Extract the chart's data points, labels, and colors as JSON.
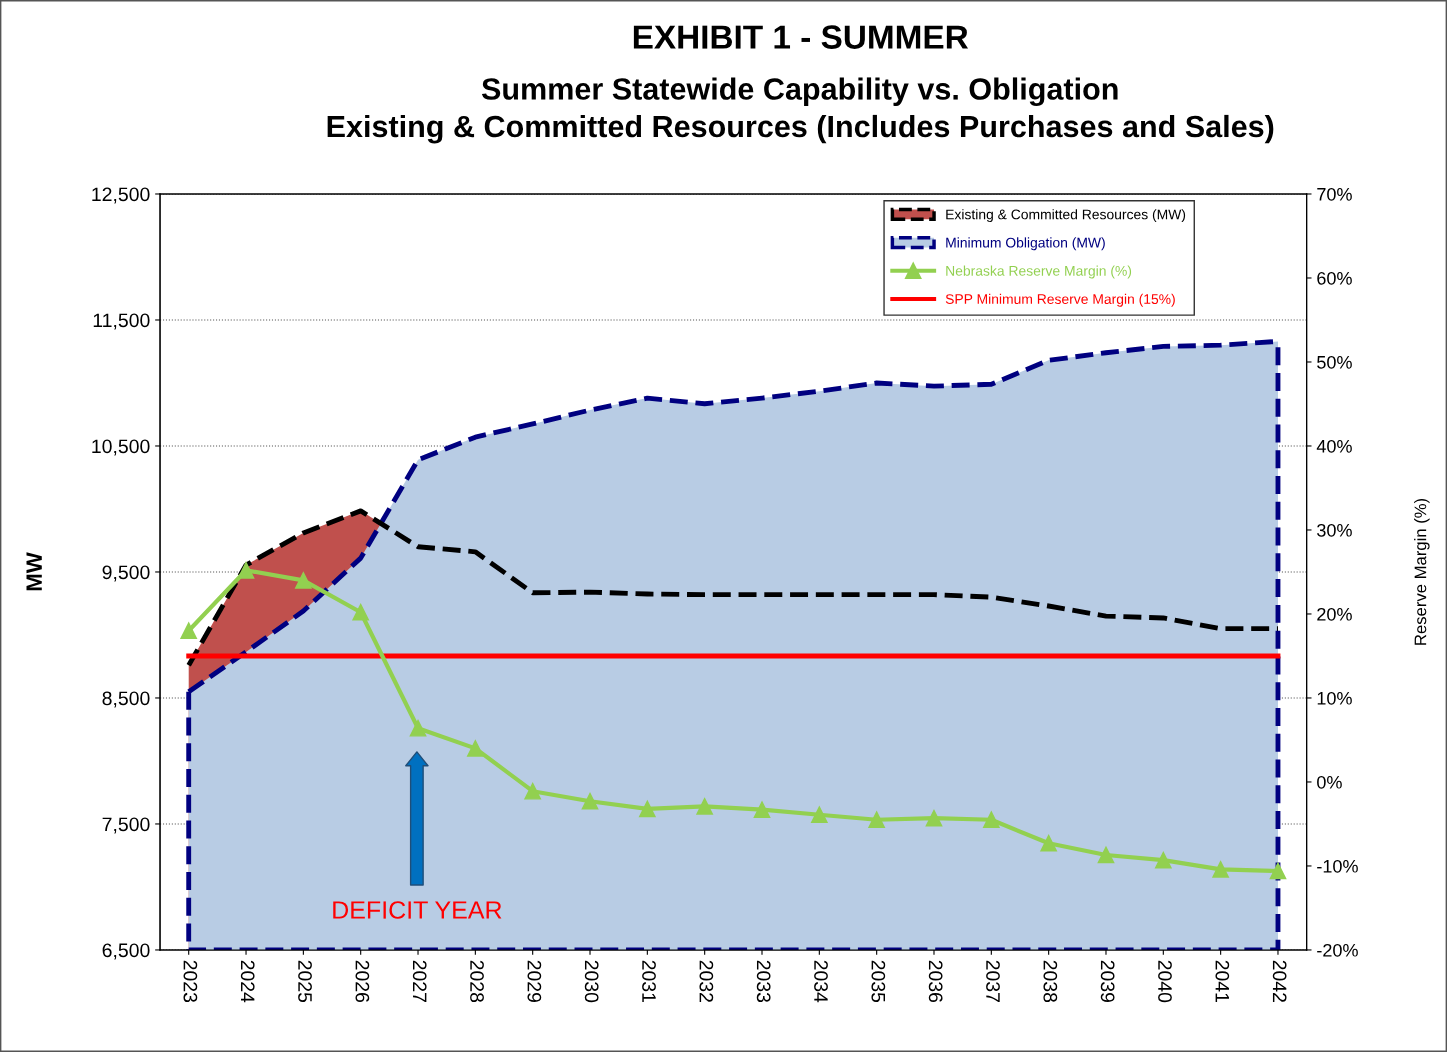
{
  "chart_data": {
    "type": "area",
    "title": "EXHIBIT 1 - SUMMER",
    "subtitle": "Summer Statewide Capability vs. Obligation\nExisting & Committed Resources (Includes Purchases and Sales)",
    "ylabel": "MW",
    "y2label": "Reserve Margin (%)",
    "categories": [
      "2023",
      "2024",
      "2025",
      "2026",
      "2027",
      "2028",
      "2029",
      "2030",
      "2031",
      "2032",
      "2033",
      "2034",
      "2035",
      "2036",
      "2037",
      "2038",
      "2039",
      "2040",
      "2041",
      "2042"
    ],
    "series": [
      {
        "name": "Existing & Committed Resources (MW)",
        "color": "#c0504d",
        "line_style": "dashed",
        "values": [
          8760,
          9555,
          9810,
          9985,
          9700,
          9660,
          9335,
          9340,
          9325,
          9320,
          9320,
          9320,
          9320,
          9320,
          9300,
          9230,
          9150,
          9135,
          9050,
          9050
        ]
      },
      {
        "name": "Minimum Obligation (MW)",
        "color": "#b8cce4",
        "line_style": "dashed",
        "values": [
          8550,
          8865,
          9190,
          9610,
          10390,
          10570,
          10675,
          10785,
          10880,
          10835,
          10880,
          10935,
          11000,
          10975,
          10990,
          11180,
          11240,
          11290,
          11300,
          11330
        ]
      },
      {
        "name": "Nebraska Reserve Margin (%)",
        "type": "line",
        "axis": "y2",
        "color": "#92d050",
        "marker": "triangle",
        "line_style": "solid",
        "values": [
          18.0,
          25.2,
          24.0,
          20.2,
          6.4,
          4.0,
          -1.1,
          -2.3,
          -3.2,
          -2.9,
          -3.3,
          -3.9,
          -4.5,
          -4.3,
          -4.5,
          -7.3,
          -8.7,
          -9.3,
          -10.4,
          -10.6
        ]
      }
    ],
    "ref_lines": [
      {
        "axis": "y2",
        "value": 15,
        "label": "SPP Minimum Reserve Margin (15%)",
        "color": "#ff0000",
        "line_style": "solid"
      }
    ],
    "annotations": [
      "DEFICIT YEAR"
    ],
    "ylim": [
      6500,
      12500
    ],
    "yticks": [
      {
        "value": 6500,
        "label": "6,500"
      },
      {
        "value": 7500,
        "label": "7,500"
      },
      {
        "value": 8500,
        "label": "8,500"
      },
      {
        "value": 9500,
        "label": "9,500"
      },
      {
        "value": 10500,
        "label": "10,500"
      },
      {
        "value": 11500,
        "label": "11,500"
      },
      {
        "value": 12500,
        "label": "12,500"
      }
    ],
    "y2lim": [
      -20,
      70
    ],
    "y2ticks": [
      {
        "value": -20,
        "label": "-20%"
      },
      {
        "value": -10,
        "label": "-10%"
      },
      {
        "value": 0,
        "label": "0%"
      },
      {
        "value": 10,
        "label": "10%"
      },
      {
        "value": 20,
        "label": "20%"
      },
      {
        "value": 30,
        "label": "30%"
      },
      {
        "value": 40,
        "label": "40%"
      },
      {
        "value": 50,
        "label": "50%"
      },
      {
        "value": 60,
        "label": "60%"
      },
      {
        "value": 70,
        "label": "70%"
      }
    ],
    "grid": "y",
    "legend": "top right"
  }
}
